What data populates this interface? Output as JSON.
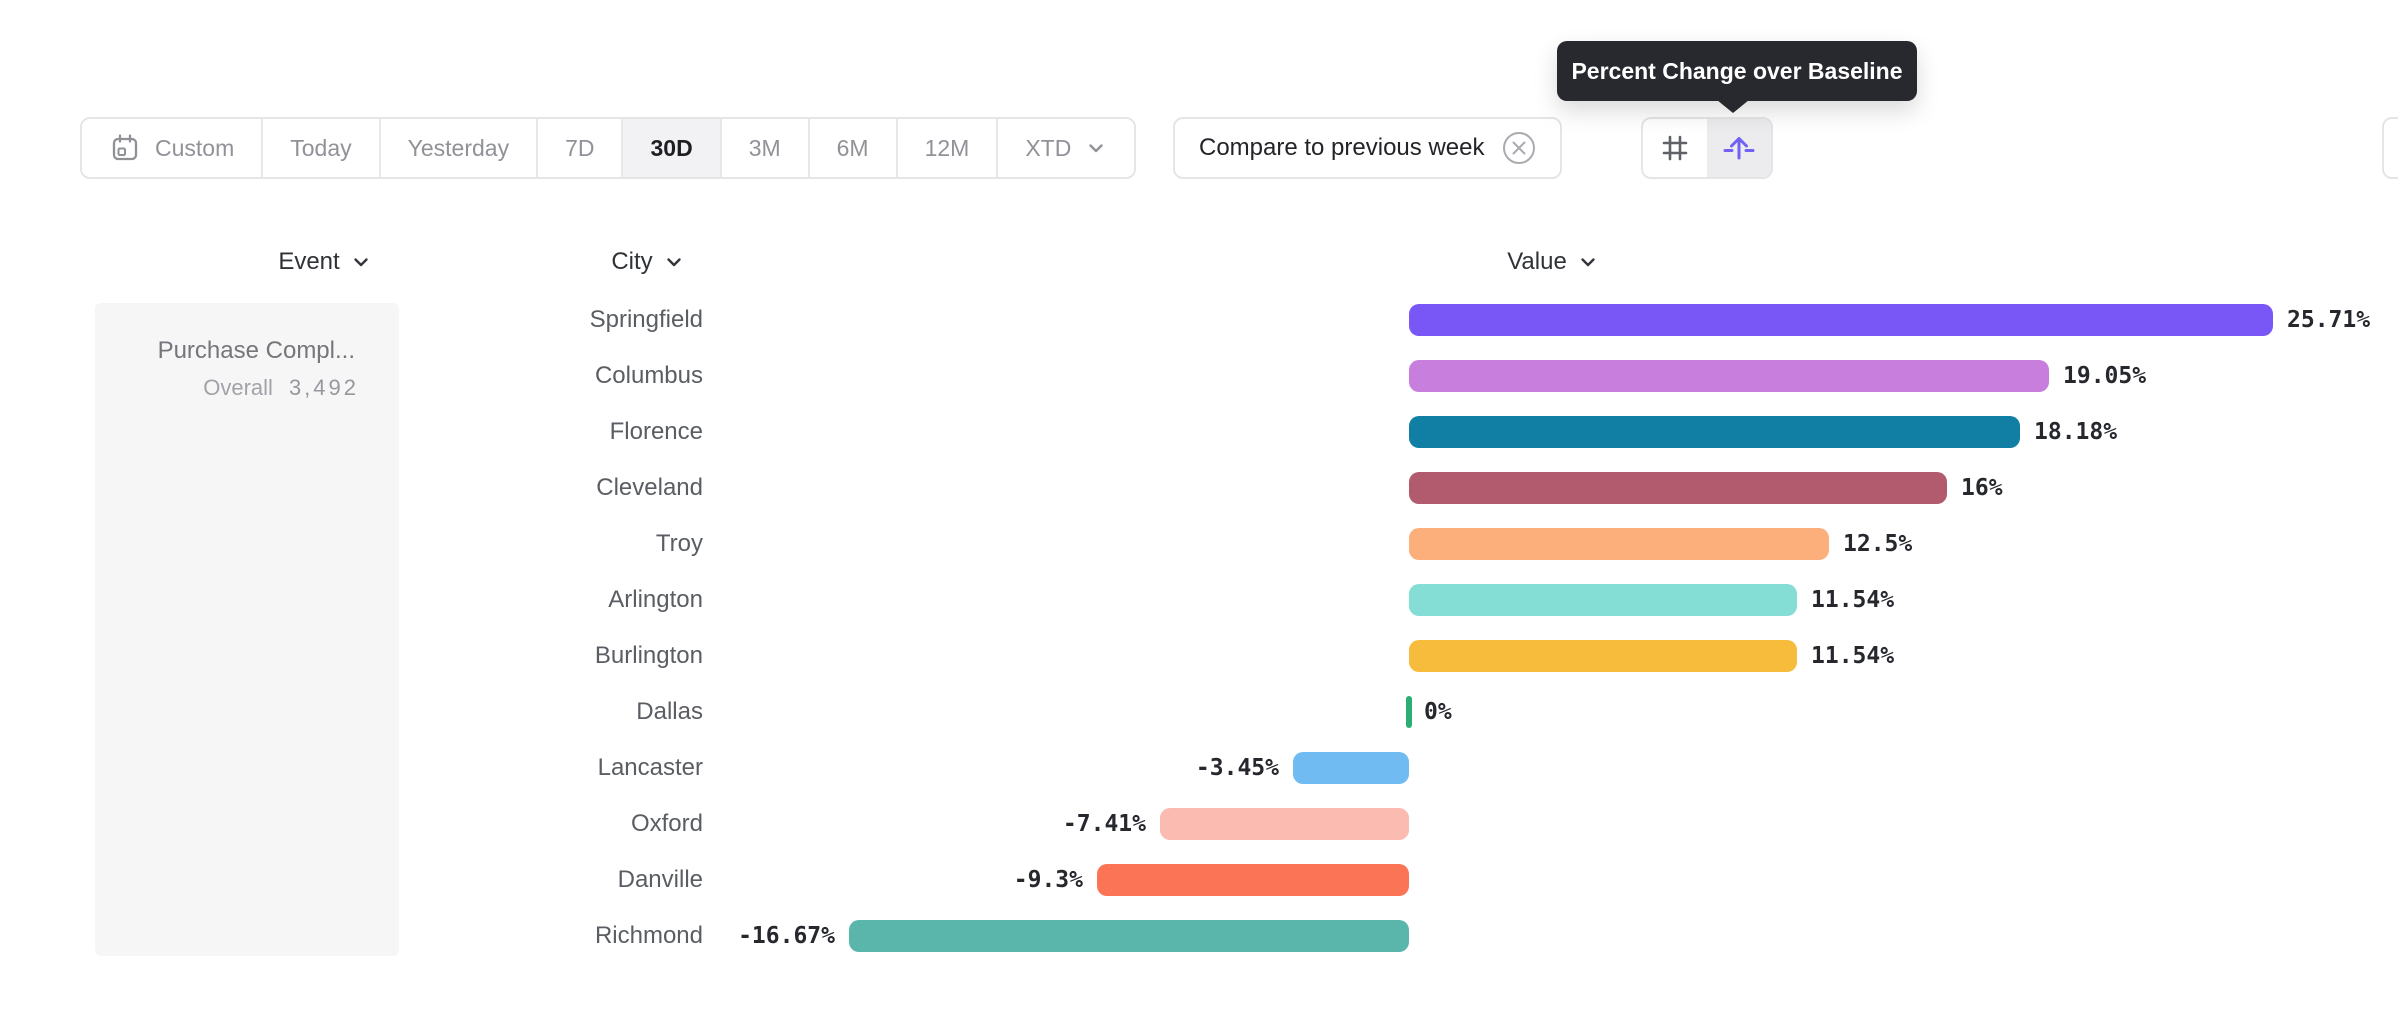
{
  "tooltip": {
    "text": "Percent Change over Baseline",
    "bg_color": "#28292E"
  },
  "toolbar": {
    "date_ranges": [
      {
        "label": "Custom",
        "icon": "calendar-icon",
        "selected": false
      },
      {
        "label": "Today",
        "selected": false
      },
      {
        "label": "Yesterday",
        "selected": false
      },
      {
        "label": "7D",
        "selected": false
      },
      {
        "label": "30D",
        "selected": true
      },
      {
        "label": "3M",
        "selected": false
      },
      {
        "label": "6M",
        "selected": false
      },
      {
        "label": "12M",
        "selected": false
      },
      {
        "label": "XTD",
        "selected": false,
        "has_chevron": true
      }
    ],
    "compare": {
      "label": "Compare to previous week",
      "icon": "remove-circle-icon"
    },
    "view_toggle": {
      "options": [
        {
          "icon": "grid-icon",
          "selected": false
        },
        {
          "icon": "percent-lift-icon",
          "selected": true
        }
      ],
      "accent_color": "#7161F5"
    }
  },
  "table": {
    "columns": {
      "event": "Event",
      "city": "City",
      "value": "Value"
    },
    "event": {
      "name": "Purchase Compl...",
      "overall_label": "Overall",
      "overall_value": "3,492"
    }
  },
  "chart_data": {
    "type": "bar",
    "orientation": "horizontal",
    "title": "Percent Change over Baseline",
    "xlabel": "Value",
    "ylabel": "City",
    "unit": "%",
    "baseline": 0,
    "xlim": [
      -16.67,
      25.71
    ],
    "categories": [
      "Springfield",
      "Columbus",
      "Florence",
      "Cleveland",
      "Troy",
      "Arlington",
      "Burlington",
      "Dallas",
      "Lancaster",
      "Oxford",
      "Danville",
      "Richmond"
    ],
    "values": [
      25.71,
      19.05,
      18.18,
      16,
      12.5,
      11.54,
      11.54,
      0,
      -3.45,
      -7.41,
      -9.3,
      -16.67
    ],
    "value_labels": [
      "25.71%",
      "19.05%",
      "18.18%",
      "16%",
      "12.5%",
      "11.54%",
      "11.54%",
      "0%",
      "-3.45%",
      "-7.41%",
      "-9.3%",
      "-16.67%"
    ],
    "colors": [
      "#7957F7",
      "#C77EDD",
      "#107FA3",
      "#B25A6E",
      "#FDAF7B",
      "#84DED6",
      "#F7BC3B",
      "#2BAD73",
      "#70BCF2",
      "#FCBBB1",
      "#FC7456",
      "#5AB6AB"
    ]
  }
}
